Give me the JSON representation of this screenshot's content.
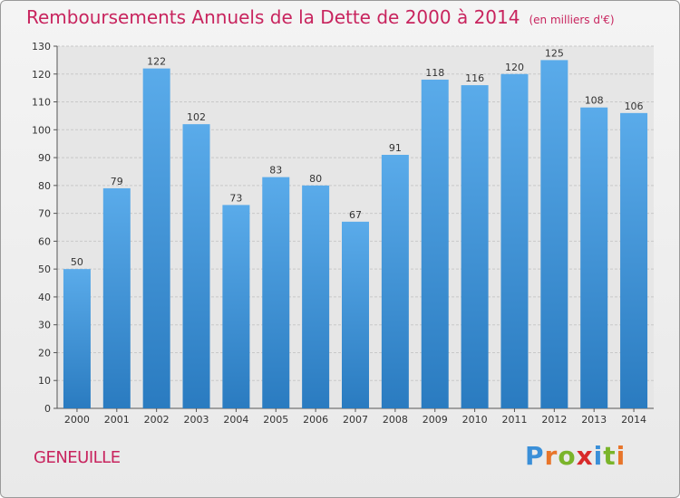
{
  "header": {
    "title": "Remboursements Annuels de la Dette de 2000 à 2014",
    "unit": "(en milliers d'€)"
  },
  "footer": {
    "commune": "GENEUILLE",
    "logo_text": "Proxiti"
  },
  "colors": {
    "title": "#c8245e",
    "bar_top": "#5aabea",
    "bar_bottom": "#2a7bc0",
    "grid": "#c8c8c8",
    "logo": [
      "#3a8fd8",
      "#e8752a",
      "#7ab42a",
      "#d82a2a",
      "#3a8fd8",
      "#7ab42a",
      "#e8752a"
    ]
  },
  "chart_data": {
    "type": "bar",
    "categories": [
      "2000",
      "2001",
      "2002",
      "2003",
      "2004",
      "2005",
      "2006",
      "2007",
      "2008",
      "2009",
      "2010",
      "2011",
      "2012",
      "2013",
      "2014"
    ],
    "values": [
      50,
      79,
      122,
      102,
      73,
      83,
      80,
      67,
      91,
      118,
      116,
      120,
      125,
      108,
      106
    ],
    "title": "Remboursements Annuels de la Dette de 2000 à 2014",
    "xlabel": "",
    "ylabel": "",
    "ylim": [
      0,
      130
    ],
    "yticks": [
      0,
      10,
      20,
      30,
      40,
      50,
      60,
      70,
      80,
      90,
      100,
      110,
      120,
      130
    ],
    "grid": true,
    "data_labels": true
  }
}
